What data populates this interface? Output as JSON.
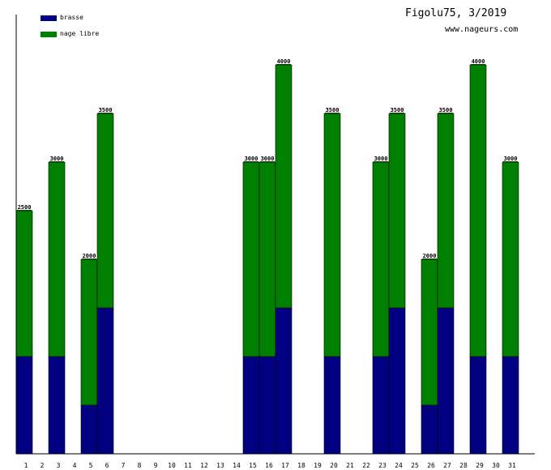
{
  "header": {
    "title": "Figolu75, 3/2019",
    "site": "www.nageurs.com"
  },
  "colors": {
    "brasse": "#000080",
    "nage_libre": "#008000",
    "axis": "#000000"
  },
  "legend": [
    {
      "label": "brasse",
      "color": "#000080"
    },
    {
      "label": "nage libre",
      "color": "#008000"
    }
  ],
  "chart_data": {
    "type": "bar",
    "stacked": true,
    "categories": [
      "1",
      "2",
      "3",
      "4",
      "5",
      "6",
      "7",
      "8",
      "9",
      "10",
      "11",
      "12",
      "13",
      "14",
      "15",
      "16",
      "17",
      "18",
      "19",
      "20",
      "21",
      "22",
      "23",
      "24",
      "25",
      "26",
      "27",
      "28",
      "29",
      "30",
      "31"
    ],
    "series": [
      {
        "name": "brasse",
        "values": [
          1000,
          0,
          1000,
          0,
          500,
          1500,
          0,
          0,
          0,
          0,
          0,
          0,
          0,
          0,
          1000,
          1000,
          1500,
          0,
          0,
          1000,
          0,
          0,
          1000,
          1500,
          0,
          500,
          1500,
          0,
          1000,
          0,
          1000
        ]
      },
      {
        "name": "nage libre",
        "values": [
          1500,
          0,
          2000,
          0,
          1500,
          2000,
          0,
          0,
          0,
          0,
          0,
          0,
          0,
          0,
          2000,
          2000,
          2500,
          0,
          0,
          2500,
          0,
          0,
          2000,
          2000,
          0,
          1500,
          2000,
          0,
          3000,
          0,
          2000
        ]
      }
    ],
    "totals": [
      2500,
      0,
      3000,
      0,
      2000,
      3500,
      0,
      0,
      0,
      0,
      0,
      0,
      0,
      0,
      3000,
      3000,
      4000,
      0,
      0,
      3500,
      0,
      0,
      3000,
      3500,
      0,
      2000,
      3500,
      0,
      4000,
      0,
      3000
    ],
    "total_labels": [
      "2500",
      "",
      "3000",
      "",
      "2000",
      "3500",
      "",
      "",
      "",
      "",
      "",
      "",
      "",
      "",
      "3000",
      "3000",
      "4000",
      "",
      "",
      "3500",
      "",
      "",
      "3000",
      "3500",
      "",
      "2000",
      "3500",
      "",
      "4000",
      "",
      "3000"
    ],
    "ylim": [
      0,
      4500
    ],
    "title": "",
    "xlabel": "",
    "ylabel": "",
    "legend_position": "top-left",
    "grid": false
  }
}
